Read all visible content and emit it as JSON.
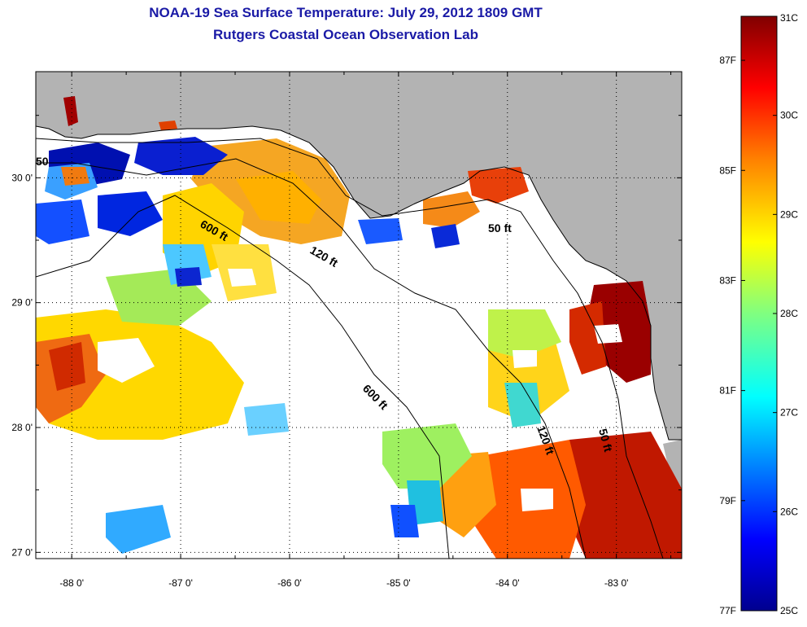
{
  "title": "NOAA-19 Sea Surface Temperature:  July 29, 2012 1809 GMT",
  "subtitle": "Rutgers Coastal Ocean Observation Lab",
  "map": {
    "lon_range": [
      -88.33,
      -82.4
    ],
    "lat_range": [
      26.95,
      30.85
    ],
    "lon_ticks": [
      {
        "value": -88,
        "label": "-88 0'"
      },
      {
        "value": -87,
        "label": "-87 0'"
      },
      {
        "value": -86,
        "label": "-86 0'"
      },
      {
        "value": -85,
        "label": "-85 0'"
      },
      {
        "value": -84,
        "label": "-84 0'"
      },
      {
        "value": -83,
        "label": "-83 0'"
      }
    ],
    "lat_ticks": [
      {
        "value": 27,
        "label": "27 0'"
      },
      {
        "value": 28,
        "label": "28 0'"
      },
      {
        "value": 29,
        "label": "29 0'"
      },
      {
        "value": 30,
        "label": "30 0'"
      }
    ],
    "grid": "dotted",
    "land_color": "#b3b3b3",
    "cloud_color": "#ffffff",
    "isobath_labels": [
      "600 ft",
      "120 ft",
      "50 ft",
      "600 ft",
      "120 ft",
      "50 ft",
      "50"
    ]
  },
  "colorbar": {
    "colors": [
      "#00008f",
      "#0000ff",
      "#0080ff",
      "#00ffff",
      "#80ff80",
      "#ffff00",
      "#ff8000",
      "#ff0000",
      "#800000"
    ],
    "celsius_labels": [
      "31C",
      "30C",
      "29C",
      "28C",
      "27C",
      "26C",
      "25C"
    ],
    "fahrenheit_labels": [
      "87F",
      "85F",
      "83F",
      "81F",
      "79F",
      "77F"
    ]
  }
}
